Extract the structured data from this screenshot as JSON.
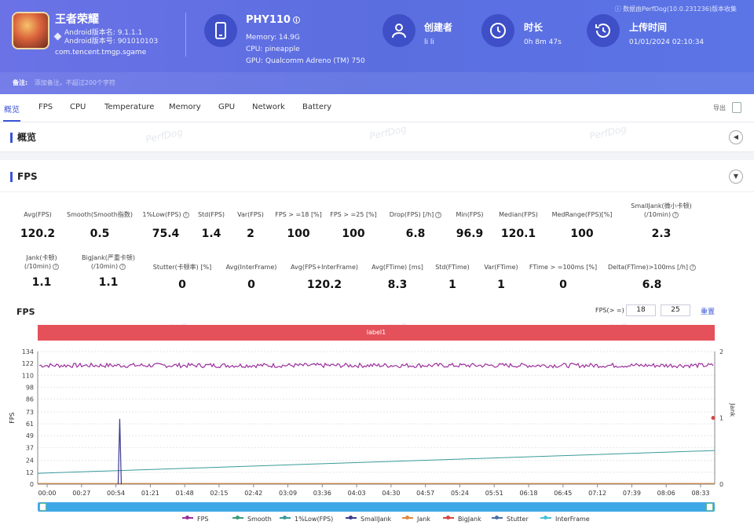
{
  "header": {
    "app_name": "王者荣耀",
    "android_version": "Android版本名: 9.1.1.1",
    "android_code": "Android版本号: 901010103",
    "package": "com.tencent.tmgp.sgame",
    "device_name": "PHY110",
    "memory": "Memory: 14.9G",
    "cpu": "CPU: pineapple",
    "gpu": "GPU: Qualcomm Adreno (TM) 750",
    "creator_title": "创建者",
    "creator_value": "li li",
    "duration_title": "时长",
    "duration_value": "0h 8m 47s",
    "upload_title": "上传时间",
    "upload_value": "01/01/2024 02:10:34",
    "top_note": "ⓘ 数据由PerfDog(10.0.231236)版本收集",
    "remark_label": "备注:",
    "remark_placeholder": "添加备注，不超过200个字符"
  },
  "tabs": [
    "概览",
    "FPS",
    "CPU",
    "Temperature",
    "Memory",
    "GPU",
    "Network",
    "Battery"
  ],
  "export_label": "导出",
  "sections": {
    "overview": "概览",
    "fps": "FPS"
  },
  "watermark": "PerfDog",
  "stats_row1": [
    {
      "label": "Avg(FPS)",
      "value": "120.2"
    },
    {
      "label": "Smooth(Smooth指数)",
      "value": "0.5"
    },
    {
      "label": "1%Low(FPS)",
      "value": "75.4"
    },
    {
      "label": "Std(FPS)",
      "value": "1.4"
    },
    {
      "label": "Var(FPS)",
      "value": "2"
    },
    {
      "label": "FPS > =18 [%]",
      "value": "100"
    },
    {
      "label": "FPS > =25 [%]",
      "value": "100"
    },
    {
      "label": "Drop(FPS) [/h]",
      "value": "6.8"
    },
    {
      "label": "Min(FPS)",
      "value": "96.9"
    },
    {
      "label": "Median(FPS)",
      "value": "120.1"
    },
    {
      "label": "MedRange(FPS)[%]",
      "value": "100"
    },
    {
      "label": "SmallJank(微小卡顿)",
      "label2": "(/10min)",
      "value": "2.3"
    }
  ],
  "stats_row2": [
    {
      "label": "Jank(卡顿)",
      "label2": "(/10min)",
      "value": "1.1"
    },
    {
      "label": "BigJank(严重卡顿)",
      "label2": "(/10min)",
      "value": "1.1"
    },
    {
      "label": "Stutter(卡顿率) [%]",
      "value": "0"
    },
    {
      "label": "Avg(InterFrame)",
      "value": "0"
    },
    {
      "label": "Avg(FPS+InterFrame)",
      "value": "120.2"
    },
    {
      "label": "Avg(FTime) [ms]",
      "value": "8.3"
    },
    {
      "label": "Std(FTime)",
      "value": "1"
    },
    {
      "label": "Var(FTime)",
      "value": "1"
    },
    {
      "label": "FTime > =100ms [%]",
      "value": "0"
    },
    {
      "label": "Delta(FTime)>100ms [/h]",
      "value": "6.8"
    }
  ],
  "fps_controls": {
    "label": "FPS(> =)",
    "value1": "18",
    "value2": "25",
    "reset": "重置"
  },
  "chart_title": "FPS",
  "label_bar": "label1",
  "chart_data": {
    "type": "line",
    "ylabel": "FPS",
    "y2label": "Jank",
    "y_ticks": [
      0,
      12,
      24,
      37,
      49,
      61,
      73,
      86,
      98,
      110,
      122,
      134
    ],
    "y2_ticks": [
      0,
      1,
      2
    ],
    "ylim": [
      0,
      134
    ],
    "y2lim": [
      0,
      2
    ],
    "x_ticks": [
      "00:00",
      "00:27",
      "00:54",
      "01:21",
      "01:48",
      "02:15",
      "02:42",
      "03:09",
      "03:36",
      "04:03",
      "04:30",
      "04:57",
      "05:24",
      "05:51",
      "06:18",
      "06:45",
      "07:12",
      "07:39",
      "08:06",
      "08:33"
    ],
    "series": [
      {
        "name": "FPS",
        "color": "#9b2f9b",
        "approx_value": 120,
        "range": [
          117,
          122
        ]
      },
      {
        "name": "Smooth",
        "color": "#3a9a7a"
      },
      {
        "name": "1%Low(FPS)",
        "color": "#3a9a9a",
        "start": 11,
        "end": 34
      },
      {
        "name": "SmallJank",
        "color": "#3b3b8f",
        "spike_at": "00:57",
        "spike_value": 66
      },
      {
        "name": "Jank",
        "color": "#e08a3c"
      },
      {
        "name": "BigJank",
        "color": "#d64545"
      },
      {
        "name": "Stutter",
        "color": "#4a6fa8"
      },
      {
        "name": "InterFrame",
        "color": "#48c0d8"
      }
    ]
  }
}
